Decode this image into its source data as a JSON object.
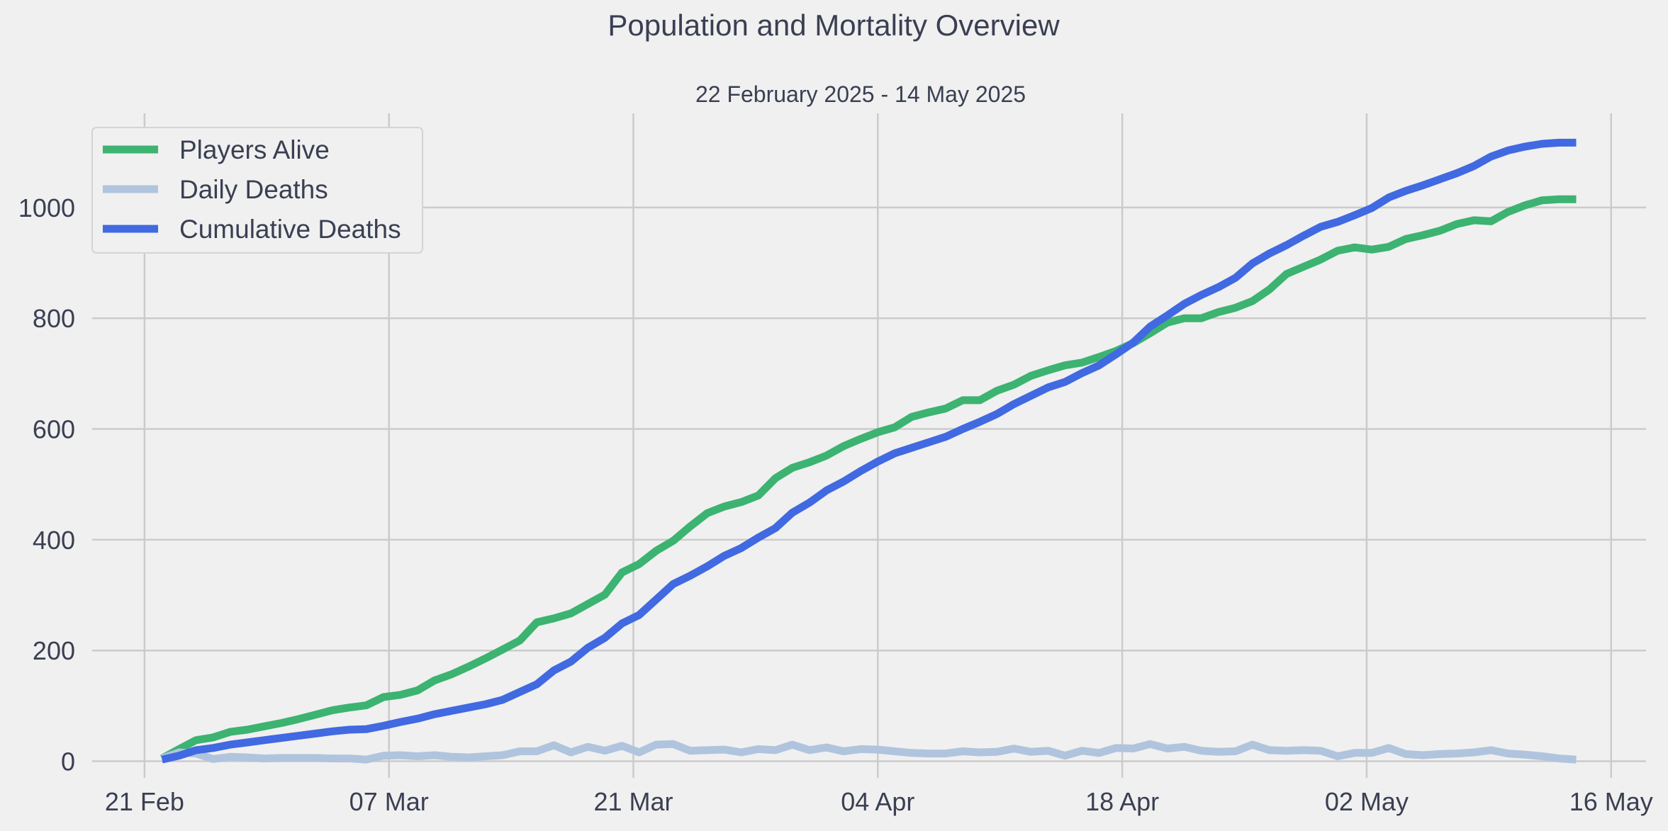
{
  "chart_data": {
    "type": "line",
    "title": "Population and Mortality Overview",
    "subtitle": "22 February 2025 - 14 May 2025",
    "xlabel": "",
    "ylabel": "",
    "x_start": "2025-02-22",
    "x_end": "2025-05-14",
    "xlim": [
      "2025-02-18",
      "2025-05-18"
    ],
    "ylim": [
      -30,
      1170
    ],
    "x_ticks": [
      {
        "date": "2025-02-21",
        "label": "21 Feb"
      },
      {
        "date": "2025-03-07",
        "label": "07 Mar"
      },
      {
        "date": "2025-03-21",
        "label": "21 Mar"
      },
      {
        "date": "2025-04-04",
        "label": "04 Apr"
      },
      {
        "date": "2025-04-18",
        "label": "18 Apr"
      },
      {
        "date": "2025-05-02",
        "label": "02 May"
      },
      {
        "date": "2025-05-16",
        "label": "16 May"
      }
    ],
    "y_ticks": [
      {
        "value": 0,
        "label": "0"
      },
      {
        "value": 200,
        "label": "200"
      },
      {
        "value": 400,
        "label": "400"
      },
      {
        "value": 600,
        "label": "600"
      },
      {
        "value": 800,
        "label": "800"
      },
      {
        "value": 1000,
        "label": "1000"
      }
    ],
    "grid": true,
    "legend_position": "top-left",
    "series": [
      {
        "name": "Players Alive",
        "color": "#3cb371",
        "values": [
          5,
          22,
          38,
          43,
          53,
          57,
          63,
          69,
          76,
          84,
          92,
          97,
          101,
          116,
          120,
          128,
          146,
          157,
          171,
          186,
          202,
          218,
          251,
          258,
          267,
          284,
          301,
          341,
          356,
          380,
          398,
          424,
          448,
          460,
          468,
          480,
          511,
          530,
          540,
          552,
          569,
          582,
          594,
          603,
          622,
          630,
          637,
          652,
          652,
          669,
          680,
          696,
          706,
          715,
          720,
          730,
          741,
          755,
          773,
          792,
          800,
          800,
          811,
          819,
          831,
          852,
          880,
          893,
          906,
          922,
          928,
          924,
          929,
          943,
          950,
          958,
          970,
          977,
          975,
          992,
          1004,
          1013,
          1015,
          1015
        ]
      },
      {
        "name": "Daily Deaths",
        "color": "#b0c4de",
        "values": [
          5,
          16,
          14,
          4,
          8,
          7,
          5,
          6,
          6,
          6,
          5,
          5,
          3,
          10,
          11,
          9,
          11,
          8,
          7,
          9,
          11,
          18,
          18,
          29,
          16,
          26,
          19,
          28,
          16,
          30,
          31,
          19,
          20,
          21,
          16,
          22,
          20,
          30,
          20,
          25,
          18,
          22,
          21,
          18,
          15,
          14,
          14,
          18,
          16,
          17,
          23,
          17,
          19,
          10,
          19,
          15,
          24,
          23,
          31,
          23,
          26,
          19,
          17,
          18,
          30,
          20,
          19,
          20,
          19,
          9,
          15,
          15,
          24,
          13,
          11,
          13,
          14,
          16,
          20,
          14,
          12,
          9,
          5,
          3
        ]
      },
      {
        "name": "Cumulative Deaths",
        "color": "#4169e1",
        "values": [
          3,
          10,
          20,
          24,
          30,
          34,
          38,
          42,
          46,
          50,
          54,
          57,
          58,
          64,
          71,
          77,
          85,
          91,
          97,
          103,
          111,
          125,
          139,
          164,
          180,
          205,
          223,
          249,
          264,
          292,
          320,
          335,
          352,
          371,
          385,
          404,
          421,
          449,
          467,
          489,
          505,
          524,
          541,
          556,
          566,
          576,
          586,
          600,
          613,
          627,
          645,
          660,
          675,
          685,
          701,
          715,
          735,
          756,
          785,
          805,
          826,
          842,
          856,
          873,
          899,
          917,
          932,
          949,
          965,
          974,
          986,
          999,
          1018,
          1030,
          1040,
          1051,
          1062,
          1075,
          1092,
          1103,
          1110,
          1115,
          1117,
          1117
        ]
      }
    ]
  }
}
